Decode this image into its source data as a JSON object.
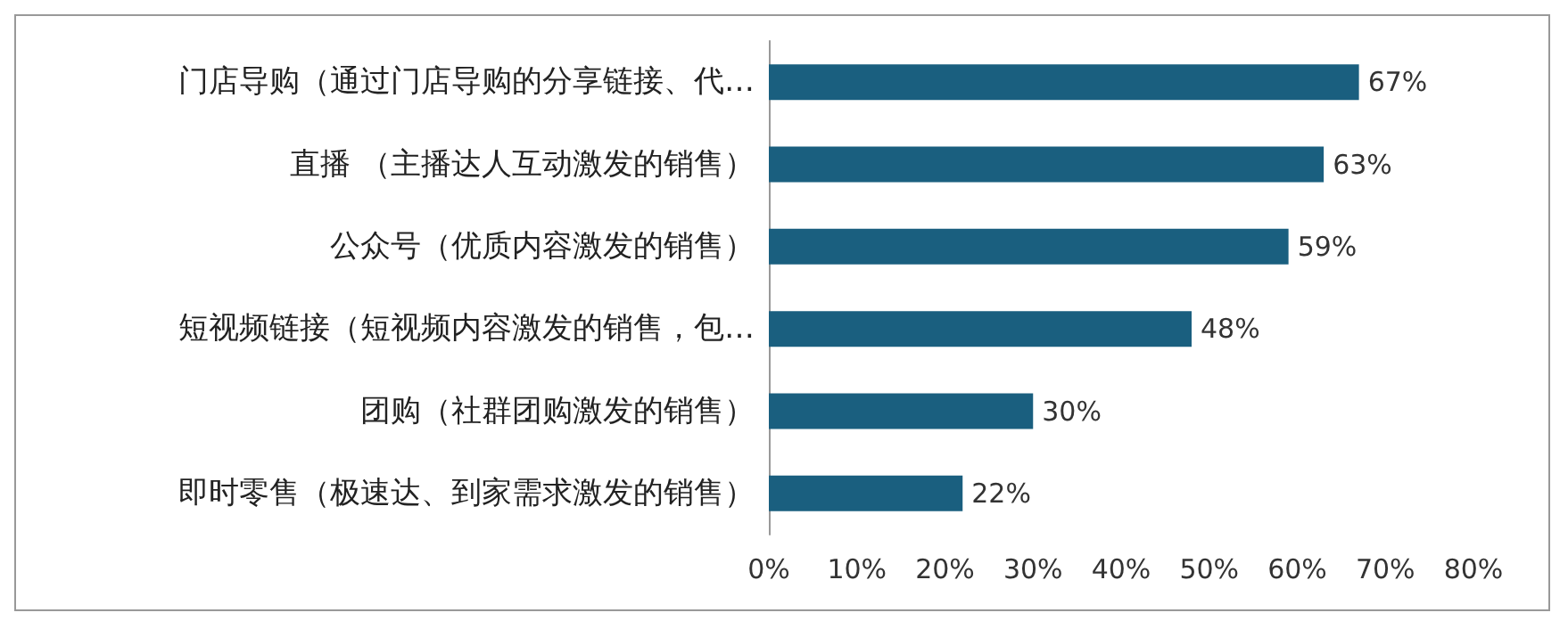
{
  "chart_data": {
    "type": "bar",
    "orientation": "horizontal",
    "categories": [
      "门店导购（通过门店导购的分享链接、代…",
      "直播 （主播达人互动激发的销售）",
      "公众号（优质内容激发的销售）",
      "短视频链接（短视频内容激发的销售，包…",
      "团购（社群团购激发的销售）",
      "即时零售（极速达、到家需求激发的销售）"
    ],
    "values": [
      67,
      63,
      59,
      48,
      30,
      22
    ],
    "value_labels": [
      "67%",
      "63%",
      "59%",
      "48%",
      "30%",
      "22%"
    ],
    "color": "#1a5f7f",
    "xlim": [
      0,
      80
    ],
    "xticks": [
      {
        "value": 0,
        "label": "0%"
      },
      {
        "value": 10,
        "label": "10%"
      },
      {
        "value": 20,
        "label": "20%"
      },
      {
        "value": 30,
        "label": "30%"
      },
      {
        "value": 40,
        "label": "40%"
      },
      {
        "value": 50,
        "label": "50%"
      },
      {
        "value": 60,
        "label": "60%"
      },
      {
        "value": 70,
        "label": "70%"
      },
      {
        "value": 80,
        "label": "80%"
      }
    ],
    "grid": false
  }
}
